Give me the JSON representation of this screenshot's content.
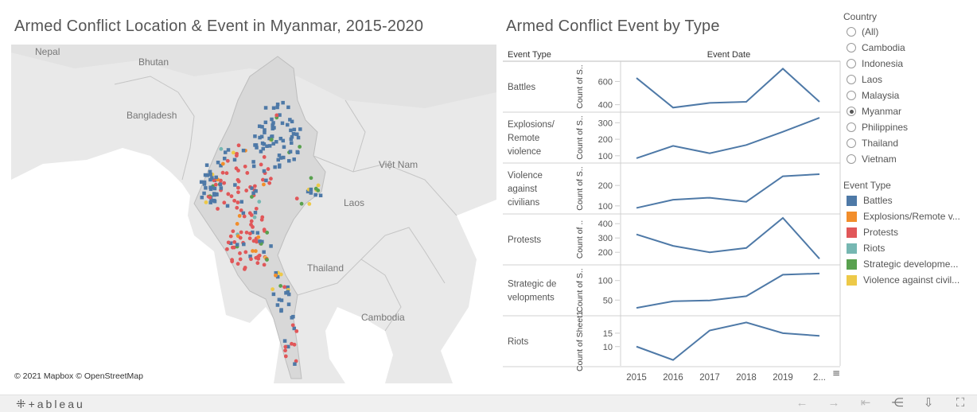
{
  "dashboard": {
    "map_title": "Armed Conflict Location & Event in Myanmar, 2015-2020",
    "chart_title": "Armed Conflict Event by Type"
  },
  "map": {
    "labels": {
      "nepal": "Nepal",
      "bhutan": "Bhutan",
      "bangladesh": "Bangladesh",
      "vietnam": "Việt Nam",
      "laos": "Laos",
      "thailand": "Thailand",
      "cambodia": "Cambodia"
    },
    "attribution": "© 2021 Mapbox  © OpenStreetMap"
  },
  "legend": {
    "country_title": "Country",
    "countries": [
      "(All)",
      "Cambodia",
      "Indonesia",
      "Laos",
      "Malaysia",
      "Myanmar",
      "Philippines",
      "Thailand",
      "Vietnam"
    ],
    "selected_country": "Myanmar",
    "event_type_title": "Event Type",
    "event_types": [
      {
        "label": "Battles",
        "color": "#4e79a7"
      },
      {
        "label": "Explosions/Remote v...",
        "color": "#f28e2b"
      },
      {
        "label": "Protests",
        "color": "#e15759"
      },
      {
        "label": "Riots",
        "color": "#76b7b2"
      },
      {
        "label": "Strategic developme...",
        "color": "#59a14f"
      },
      {
        "label": "Violence against civil...",
        "color": "#edc948"
      }
    ]
  },
  "chart_data": {
    "type": "line",
    "header_left": "Event Type",
    "header_top": "Event Date",
    "x": [
      "2015",
      "2016",
      "2017",
      "2018",
      "2019",
      "2..."
    ],
    "color": "#4e79a7",
    "series": [
      {
        "name": "Battles",
        "row_label": [
          "Battles"
        ],
        "axis_label": "Count of S..",
        "ylim": [
          370,
          740
        ],
        "ticks": [
          400,
          600
        ],
        "values": [
          630,
          375,
          415,
          425,
          710,
          425
        ]
      },
      {
        "name": "Explosions/Remote violence",
        "row_label": [
          "Explosions/",
          "Remote",
          "violence"
        ],
        "axis_label": "Count of S..",
        "ylim": [
          80,
          340
        ],
        "ticks": [
          100,
          200,
          300
        ],
        "values": [
          85,
          160,
          115,
          165,
          245,
          330
        ]
      },
      {
        "name": "Violence against civilians",
        "row_label": [
          "Violence",
          "against",
          "civilians"
        ],
        "axis_label": "Count of S..",
        "ylim": [
          80,
          290
        ],
        "ticks": [
          100,
          200
        ],
        "values": [
          90,
          130,
          140,
          120,
          245,
          255
        ]
      },
      {
        "name": "Protests",
        "row_label": [
          "Protests"
        ],
        "axis_label": "Count of ..",
        "ylim": [
          140,
          440
        ],
        "ticks": [
          200,
          300,
          400
        ],
        "values": [
          325,
          245,
          200,
          230,
          440,
          155
        ]
      },
      {
        "name": "Strategic developments",
        "row_label": [
          "Strategic de",
          "velopments"
        ],
        "axis_label": "Count of S..",
        "ylim": [
          20,
          130
        ],
        "ticks": [
          50,
          100
        ],
        "values": [
          30,
          47,
          49,
          60,
          115,
          118
        ]
      },
      {
        "name": "Riots",
        "row_label": [
          "Riots"
        ],
        "axis_label": "Count of Sheet1",
        "ylim": [
          4,
          20
        ],
        "ticks": [
          10,
          15
        ],
        "values": [
          10,
          5,
          16,
          19,
          15,
          14
        ]
      }
    ]
  },
  "toolbar": {
    "brand": "+ableau"
  }
}
